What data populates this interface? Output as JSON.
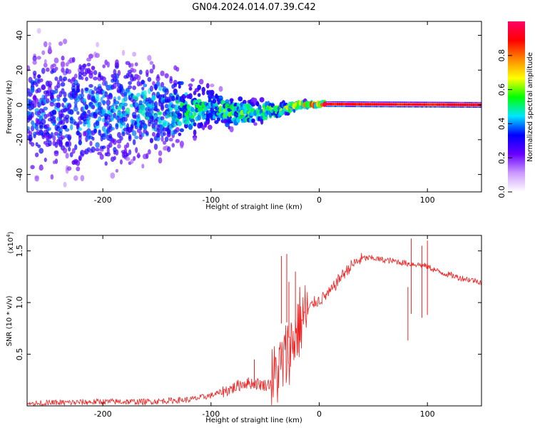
{
  "title": "GN04.2024.014.07.39.C42",
  "chart_data": [
    {
      "type": "heatmap",
      "xlabel": "Height of straight line (km)",
      "ylabel": "Frequency (Hz)",
      "xlim": [
        -270,
        150
      ],
      "ylim": [
        -50,
        48
      ],
      "xticks": [
        -200,
        -100,
        0,
        100
      ],
      "yticks": [
        40,
        20,
        0,
        -20,
        -40
      ],
      "colorbar": {
        "label": "Normalized spectral amplitude",
        "range": [
          0,
          1
        ],
        "ticks": [
          0.0,
          0.2,
          0.4,
          0.6,
          0.8
        ],
        "colormap": [
          "#ffffff",
          "#cc99ff",
          "#6600ff",
          "#0000ff",
          "#00e5ff",
          "#00ff00",
          "#ffff00",
          "#ff8800",
          "#ff0000",
          "#ff0066"
        ]
      },
      "trend": [
        {
          "x": -270,
          "f": -3,
          "amp": 0.35,
          "spread": 40
        },
        {
          "x": -200,
          "f": -4,
          "amp": 0.4,
          "spread": 35
        },
        {
          "x": -140,
          "f": -3,
          "amp": 0.45,
          "spread": 25
        },
        {
          "x": -100,
          "f": -2,
          "amp": 0.5,
          "spread": 12
        },
        {
          "x": -70,
          "f": -5,
          "amp": 0.55,
          "spread": 8
        },
        {
          "x": -40,
          "f": -3,
          "amp": 0.55,
          "spread": 5
        },
        {
          "x": -20,
          "f": 0,
          "amp": 0.7,
          "spread": 2
        },
        {
          "x": 0,
          "f": 0.5,
          "amp": 0.9,
          "spread": 1
        },
        {
          "x": 150,
          "f": 0,
          "amp": 0.9,
          "spread": 1
        }
      ]
    },
    {
      "type": "line",
      "xlabel": "Height of straight line (km)",
      "ylabel": "SNR (10 * v/v)",
      "multiplier_label": "(x10",
      "multiplier_exp": "4",
      "multiplier_close": ")",
      "xlim": [
        -270,
        150
      ],
      "ylim": [
        0,
        1.65
      ],
      "xticks": [
        -200,
        -100,
        0,
        100
      ],
      "yticks": [
        0.5,
        1.0,
        1.5
      ],
      "ytick_labels": [
        "0.5",
        "1.0",
        "1.5"
      ],
      "series": [
        {
          "color": "#ee2222",
          "x": [
            -270,
            -240,
            -200,
            -160,
            -140,
            -120,
            -100,
            -80,
            -70,
            -60,
            -50,
            -45,
            -40,
            -35,
            -30,
            -25,
            -20,
            -15,
            -10,
            -5,
            0,
            10,
            20,
            30,
            40,
            50,
            60,
            70,
            80,
            90,
            100,
            110,
            120,
            130,
            140,
            150
          ],
          "y": [
            0.02,
            0.03,
            0.04,
            0.04,
            0.05,
            0.06,
            0.1,
            0.17,
            0.22,
            0.22,
            0.2,
            0.22,
            0.3,
            0.38,
            0.5,
            0.6,
            0.75,
            0.85,
            0.93,
            1.0,
            1.02,
            1.1,
            1.25,
            1.36,
            1.43,
            1.43,
            1.41,
            1.4,
            1.38,
            1.37,
            1.35,
            1.3,
            1.27,
            1.24,
            1.22,
            1.2
          ]
        }
      ],
      "spikes": [
        {
          "x": -35,
          "y": 1.45
        },
        {
          "x": -30,
          "y": 1.47
        },
        {
          "x": -28,
          "y": 1.2
        },
        {
          "x": -22,
          "y": 1.3
        },
        {
          "x": -18,
          "y": 1.15
        },
        {
          "x": -60,
          "y": 0.45
        },
        {
          "x": 85,
          "y": 1.62
        },
        {
          "x": 82,
          "y": 1.15
        },
        {
          "x": 95,
          "y": 1.55
        },
        {
          "x": 100,
          "y": 1.6
        }
      ]
    }
  ]
}
